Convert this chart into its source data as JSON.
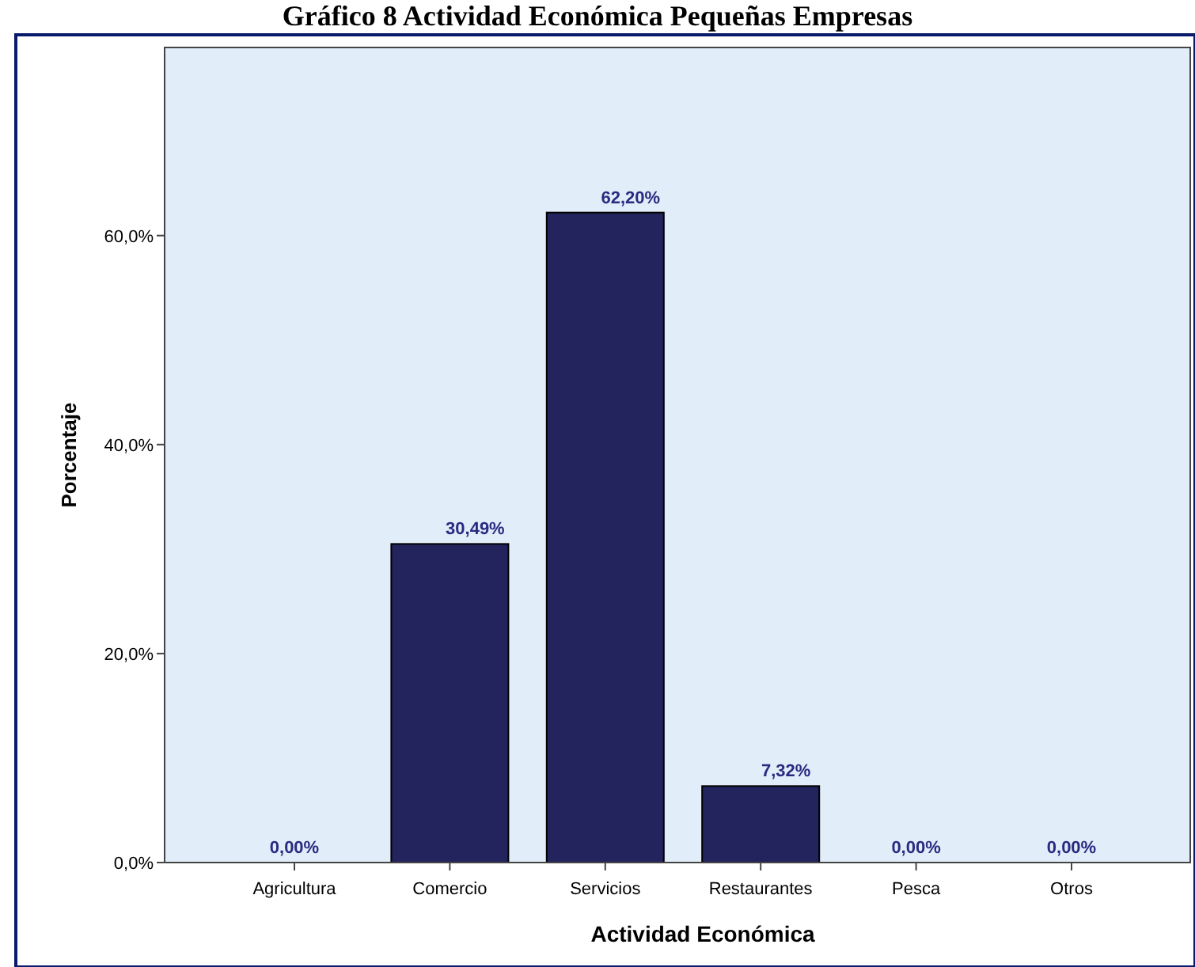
{
  "chart_data": {
    "type": "bar",
    "title": "Gráfico 8 Actividad Económica Pequeñas Empresas",
    "xlabel": "Actividad Económica",
    "ylabel": "Porcentaje",
    "categories": [
      "Agricultura",
      "Comercio",
      "Servicios",
      "Restaurantes",
      "Pesca",
      "Otros"
    ],
    "values": [
      0,
      30.49,
      62.2,
      7.32,
      0,
      0
    ],
    "value_labels": [
      "0,00%",
      "30,49%",
      "62,20%",
      "7,32%",
      "0,00%",
      "0,00%"
    ],
    "color": "#23235e",
    "ylim": [
      0,
      78
    ],
    "yticks": [
      {
        "value": 0,
        "label": "0,0%"
      },
      {
        "value": 20,
        "label": "20,0%"
      },
      {
        "value": 40,
        "label": "40,0%"
      },
      {
        "value": 60,
        "label": "60,0%"
      }
    ],
    "grid": false
  }
}
